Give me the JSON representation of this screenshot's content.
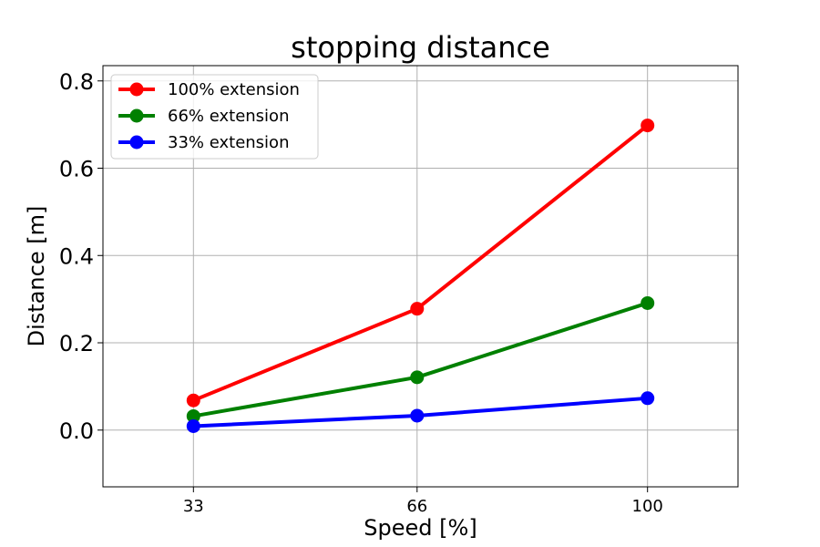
{
  "chart_data": {
    "type": "line",
    "title": "stopping distance",
    "xlabel": "Speed [%]",
    "ylabel": "Distance [m]",
    "x": [
      33,
      66,
      100
    ],
    "x_tick_labels": [
      "33",
      "66",
      "100"
    ],
    "xlim": [
      19.65,
      113.35
    ],
    "ylim": [
      -0.13,
      0.835
    ],
    "y_ticks": [
      0.0,
      0.2,
      0.4,
      0.6,
      0.8
    ],
    "y_tick_labels": [
      "0.0",
      "0.2",
      "0.4",
      "0.6",
      "0.8"
    ],
    "grid": true,
    "legend_position": "top-left",
    "series": [
      {
        "name": "100% extension",
        "color": "#ff0000",
        "values": [
          0.068,
          0.278,
          0.698
        ]
      },
      {
        "name": "66% extension",
        "color": "#008000",
        "values": [
          0.032,
          0.121,
          0.291
        ]
      },
      {
        "name": "33% extension",
        "color": "#0000ff",
        "values": [
          0.009,
          0.033,
          0.073
        ]
      }
    ]
  }
}
